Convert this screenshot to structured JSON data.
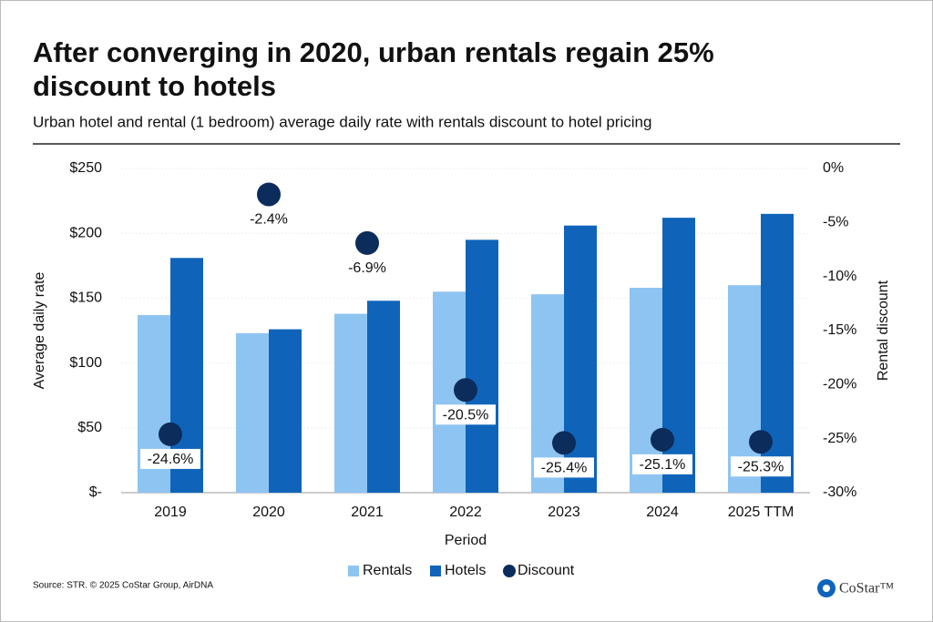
{
  "chart_data": {
    "type": "bar",
    "title_lines": [
      "After converging in 2020, urban rentals regain 25%",
      "discount to hotels"
    ],
    "subtitle": "Urban hotel and rental (1 bedroom) average daily rate with rentals discount to hotel pricing",
    "y_label": "Average daily rate",
    "y2_label": "Rental discount",
    "x_label": "Period",
    "categories": [
      "2019",
      "2020",
      "2021",
      "2022",
      "2023",
      "2024",
      "2025 TTM"
    ],
    "series": [
      {
        "name": "Rentals",
        "color": "#8ec4f2",
        "values": [
          137,
          123,
          138,
          155,
          153,
          158,
          160
        ]
      },
      {
        "name": "Hotels",
        "color": "#0f64ba",
        "values": [
          181,
          126,
          148,
          195,
          206,
          212,
          215
        ]
      },
      {
        "name": "Discount",
        "color": "#0c2c5c",
        "type": "scatter",
        "axis": "y2",
        "values": [
          -24.6,
          -2.4,
          -6.9,
          -20.5,
          -25.4,
          -25.1,
          -25.3
        ],
        "value_labels": [
          "-24.6%",
          "-2.4%",
          "-6.9%",
          "-20.5%",
          "-25.4%",
          "-25.1%",
          "-25.3%"
        ]
      }
    ],
    "ylim": [
      0,
      250
    ],
    "yticks": [
      {
        "value": 0,
        "label": "$-"
      },
      {
        "value": 50,
        "label": "$50"
      },
      {
        "value": 100,
        "label": "$100"
      },
      {
        "value": 150,
        "label": "$150"
      },
      {
        "value": 200,
        "label": "$200"
      },
      {
        "value": 250,
        "label": "$250"
      }
    ],
    "y2lim": [
      -30,
      0
    ],
    "y2ticks": [
      {
        "value": -30,
        "label": "-30%"
      },
      {
        "value": -25,
        "label": "-25%"
      },
      {
        "value": -20,
        "label": "-20%"
      },
      {
        "value": -15,
        "label": "-15%"
      },
      {
        "value": -10,
        "label": "-10%"
      },
      {
        "value": -5,
        "label": "-5%"
      },
      {
        "value": 0,
        "label": "0%"
      }
    ],
    "grid": true,
    "source": "Source: STR. © 2025 CoStar Group, AirDNA",
    "logo": "CoStar™"
  }
}
